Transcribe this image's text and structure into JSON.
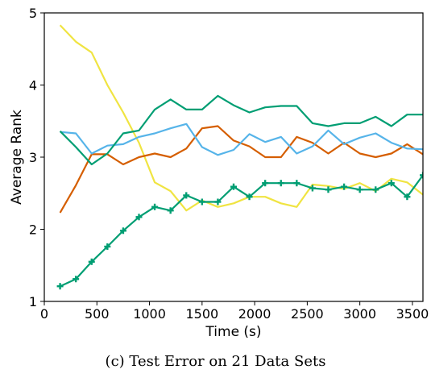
{
  "caption": "(c) Test Error on 21 Data Sets",
  "chart_data": {
    "type": "line",
    "title": "",
    "xlabel": "Time (s)",
    "ylabel": "Average Rank",
    "xlim": [
      0,
      3600
    ],
    "ylim": [
      1,
      5
    ],
    "xticks": [
      0,
      500,
      1000,
      1500,
      2000,
      2500,
      3000,
      3500
    ],
    "yticks": [
      1,
      2,
      3,
      4,
      5
    ],
    "grid": false,
    "legend": "none",
    "series": [
      {
        "color": "#f0e442",
        "marker": "none",
        "x": [
          150,
          300,
          450,
          600,
          750,
          900,
          1050,
          1200,
          1350,
          1500,
          1650,
          1800,
          1950,
          2100,
          2250,
          2400,
          2550,
          2700,
          2850,
          3000,
          3150,
          3300,
          3450,
          3600
        ],
        "y": [
          4.83,
          4.6,
          4.45,
          4.0,
          3.62,
          3.2,
          2.65,
          2.53,
          2.26,
          2.4,
          2.31,
          2.36,
          2.45,
          2.45,
          2.36,
          2.31,
          2.62,
          2.6,
          2.56,
          2.64,
          2.53,
          2.7,
          2.65,
          2.48
        ]
      },
      {
        "color": "#d55e00",
        "marker": "none",
        "x": [
          150,
          300,
          450,
          600,
          750,
          900,
          1050,
          1200,
          1350,
          1500,
          1650,
          1800,
          1950,
          2100,
          2250,
          2400,
          2550,
          2700,
          2850,
          3000,
          3150,
          3300,
          3450,
          3600
        ],
        "y": [
          2.23,
          2.61,
          3.04,
          3.04,
          2.9,
          3.0,
          3.05,
          3.0,
          3.12,
          3.4,
          3.43,
          3.23,
          3.15,
          3.0,
          3.0,
          3.28,
          3.2,
          3.05,
          3.2,
          3.05,
          3.0,
          3.05,
          3.18,
          3.04
        ]
      },
      {
        "color": "#56b4e9",
        "marker": "none",
        "x": [
          150,
          300,
          450,
          600,
          750,
          900,
          1050,
          1200,
          1350,
          1500,
          1650,
          1800,
          1950,
          2100,
          2250,
          2400,
          2550,
          2700,
          2850,
          3000,
          3150,
          3300,
          3450,
          3600
        ],
        "y": [
          3.35,
          3.33,
          3.05,
          3.16,
          3.18,
          3.28,
          3.33,
          3.4,
          3.46,
          3.14,
          3.03,
          3.1,
          3.32,
          3.21,
          3.28,
          3.05,
          3.15,
          3.37,
          3.18,
          3.27,
          3.33,
          3.2,
          3.12,
          3.11
        ]
      },
      {
        "color": "#009e73",
        "marker": "none",
        "x": [
          150,
          300,
          450,
          600,
          750,
          900,
          1050,
          1200,
          1350,
          1500,
          1650,
          1800,
          1950,
          2100,
          2250,
          2400,
          2550,
          2700,
          2850,
          3000,
          3150,
          3300,
          3450,
          3600
        ],
        "y": [
          3.36,
          3.14,
          2.9,
          3.05,
          3.33,
          3.37,
          3.66,
          3.8,
          3.66,
          3.66,
          3.85,
          3.72,
          3.62,
          3.69,
          3.71,
          3.71,
          3.47,
          3.43,
          3.47,
          3.47,
          3.56,
          3.43,
          3.59,
          3.59
        ]
      },
      {
        "color": "#009e73",
        "marker": "plus",
        "x": [
          150,
          300,
          450,
          600,
          750,
          900,
          1050,
          1200,
          1350,
          1500,
          1650,
          1800,
          1950,
          2100,
          2250,
          2400,
          2550,
          2700,
          2850,
          3000,
          3150,
          3300,
          3450,
          3600
        ],
        "y": [
          1.21,
          1.31,
          1.55,
          1.76,
          1.98,
          2.17,
          2.31,
          2.26,
          2.47,
          2.38,
          2.38,
          2.59,
          2.45,
          2.64,
          2.64,
          2.64,
          2.57,
          2.55,
          2.59,
          2.55,
          2.55,
          2.64,
          2.45,
          2.75
        ]
      }
    ]
  }
}
